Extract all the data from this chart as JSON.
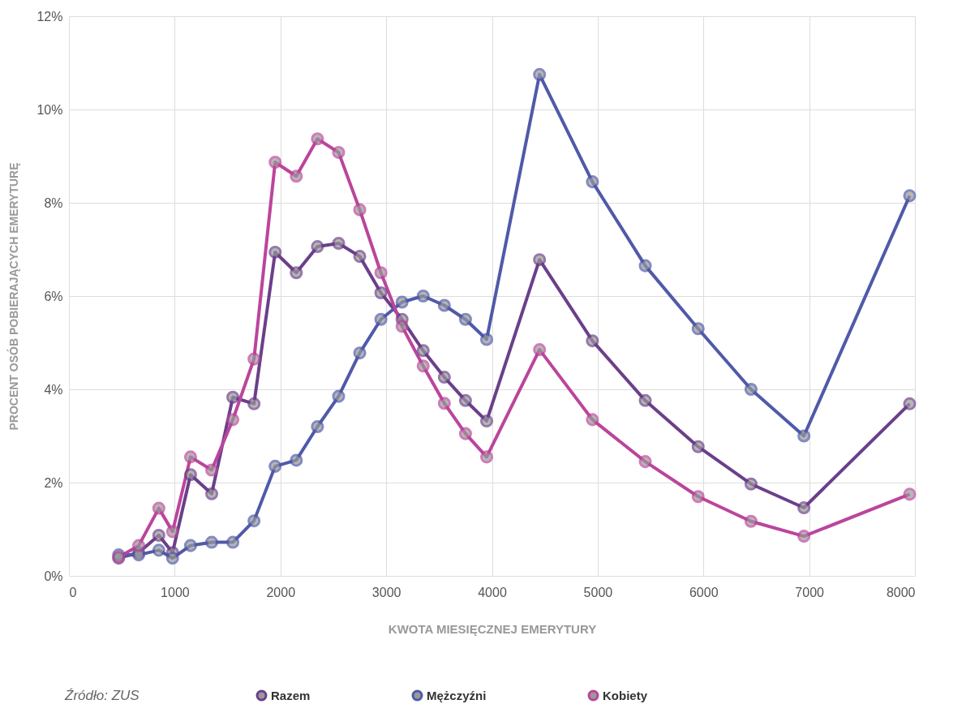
{
  "chart_data": {
    "type": "line",
    "xlabel": "KWOTA MIESIĘCZNEJ EMERYTURY",
    "ylabel": "PROCENT OSÓB POBIERAJĄCYCH EMERYTURĘ",
    "annotations": [
      "Źródło: ZUS"
    ],
    "x": [
      470,
      660,
      850,
      980,
      1150,
      1350,
      1550,
      1750,
      1950,
      2150,
      2350,
      2550,
      2750,
      2950,
      3150,
      3350,
      3550,
      3750,
      3950,
      4450,
      4950,
      5450,
      5950,
      6450,
      6950,
      7950
    ],
    "series": [
      {
        "name": "Razem",
        "color": "#6b3f8a",
        "values": [
          0.38,
          0.5,
          0.87,
          0.5,
          2.17,
          1.76,
          3.83,
          3.69,
          6.94,
          6.5,
          7.06,
          7.13,
          6.85,
          6.07,
          5.5,
          4.83,
          4.26,
          3.76,
          3.32,
          6.78,
          5.04,
          3.76,
          2.77,
          1.97,
          1.46,
          3.69
        ]
      },
      {
        "name": "Mężczyźni",
        "color": "#4f5aa8",
        "values": [
          0.45,
          0.45,
          0.55,
          0.38,
          0.65,
          0.72,
          0.72,
          1.18,
          2.35,
          2.48,
          3.2,
          3.85,
          4.78,
          5.5,
          5.87,
          6.0,
          5.8,
          5.5,
          5.07,
          10.75,
          8.45,
          6.65,
          5.3,
          4.0,
          3.0,
          8.15
        ]
      },
      {
        "name": "Kobiety",
        "color": "#bb459c",
        "values": [
          0.4,
          0.65,
          1.45,
          0.95,
          2.55,
          2.27,
          3.35,
          4.65,
          8.87,
          8.57,
          9.37,
          9.08,
          7.85,
          6.5,
          5.35,
          4.5,
          3.7,
          3.05,
          2.55,
          4.85,
          3.35,
          2.45,
          1.7,
          1.17,
          0.85,
          1.75
        ]
      }
    ],
    "xlim": [
      0,
      8000
    ],
    "xticks": [
      0,
      1000,
      2000,
      3000,
      4000,
      5000,
      6000,
      7000,
      8000
    ],
    "ylim": [
      0,
      12
    ],
    "yticks": [
      {
        "value": 0,
        "label": "0%"
      },
      {
        "value": 2,
        "label": "2%"
      },
      {
        "value": 4,
        "label": "4%"
      },
      {
        "value": 6,
        "label": "6%"
      },
      {
        "value": 8,
        "label": "8%"
      },
      {
        "value": 10,
        "label": "10%"
      },
      {
        "value": 12,
        "label": "12%"
      }
    ],
    "grid": true,
    "legend": "bottom",
    "marker": "circle",
    "line_style": "solid"
  }
}
